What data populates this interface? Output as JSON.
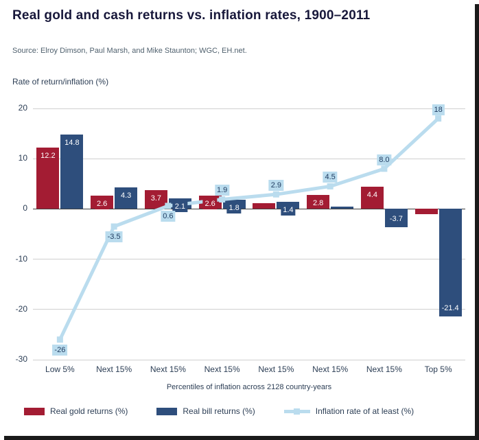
{
  "title": "Real gold and cash returns vs. inflation rates, 1900–2011",
  "source": "Source: Elroy Dimson, Paul Marsh, and Mike Staunton; WGC, EH.net.",
  "chart_data": {
    "type": "bar",
    "subtype": "grouped bars with overlaid line",
    "title": "Real gold and cash returns vs. inflation rates, 1900–2011",
    "categories": [
      "Low 5%",
      "Next 15%",
      "Next 15%",
      "Next 15%",
      "Next 15%",
      "Next 15%",
      "Next 15%",
      "Top 5%"
    ],
    "series": [
      {
        "name": "Real gold returns (%)",
        "kind": "bar",
        "color": "#a31c33",
        "values": [
          12.2,
          2.6,
          3.7,
          2.6,
          1.1,
          2.8,
          4.4,
          -1.0
        ],
        "labels": [
          "12.2",
          "2.6",
          "3.7",
          "2.6",
          null,
          "2.8",
          "4.4",
          null
        ]
      },
      {
        "name": "Real bill returns (%)",
        "kind": "bar",
        "color": "#2e4e7c",
        "values": [
          14.8,
          4.3,
          2.1,
          1.8,
          1.4,
          0.4,
          -3.7,
          -21.4
        ],
        "labels": [
          "14.8",
          "4.3",
          "2.1",
          "1.8",
          "1.4",
          null,
          "-3.7",
          "-21.4"
        ]
      },
      {
        "name": "Inflation rate of at least (%)",
        "kind": "line",
        "color": "#badcee",
        "label_text_color": "#1e3a5f",
        "values": [
          -26,
          -3.5,
          0.6,
          1.9,
          2.9,
          4.5,
          8.0,
          18
        ],
        "labels": [
          "-26",
          "-3.5",
          "0.6",
          "1.9",
          "2.9",
          "4.5",
          "8.0",
          "18"
        ]
      }
    ],
    "ylabel": "Rate of return/inflation (%)",
    "xlabel": "Percentiles of inflation across 2128 country-years",
    "ylim": [
      -30,
      20
    ],
    "yticks": [
      20,
      10,
      0,
      -10,
      -20,
      -30
    ],
    "grid": true,
    "legend_position": "bottom"
  }
}
